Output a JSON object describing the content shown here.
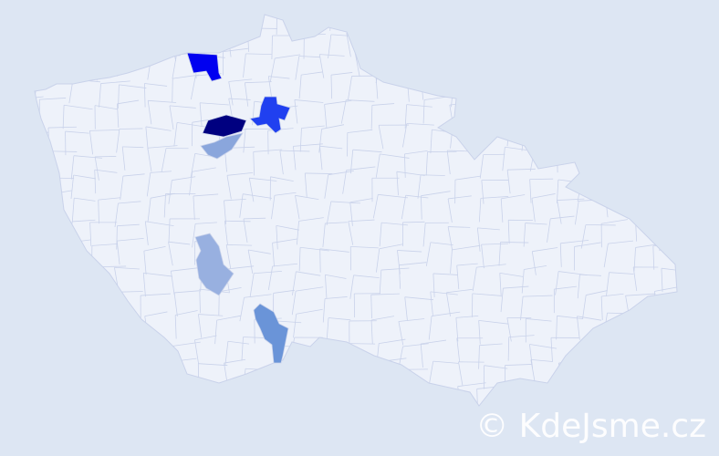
{
  "map": {
    "colors": {
      "background": "#dde6f3",
      "region_fill": "#eef2fa",
      "region_stroke": "#c9d2ea"
    },
    "highlighted_regions": [
      {
        "color": "#0000f0"
      },
      {
        "color": "#000080"
      },
      {
        "color": "#2040f0"
      },
      {
        "color": "#8aa6dc"
      },
      {
        "color": "#98b0e0"
      },
      {
        "color": "#6a94d8"
      }
    ]
  },
  "watermark": "© KdeJsme.cz"
}
